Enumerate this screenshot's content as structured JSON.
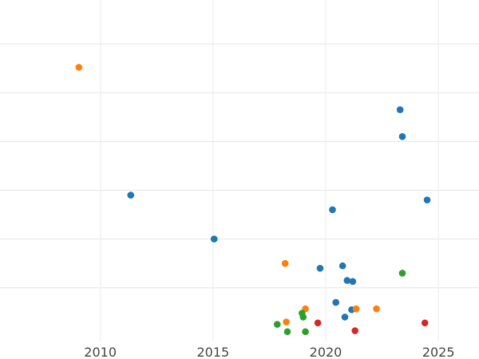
{
  "chart_data": {
    "type": "scatter",
    "title": "",
    "xlabel": "",
    "ylabel": "",
    "xlim": [
      2005.55,
      2026.8
    ],
    "ylim": [
      -0.1,
      6.9
    ],
    "x_ticks": [
      2010,
      2015,
      2020,
      2025
    ],
    "x_tick_labels": [
      "2010",
      "2015",
      "2020",
      "2025"
    ],
    "y_gridlines": [
      1,
      2,
      3,
      4,
      5,
      6
    ],
    "grid": true,
    "legend": "none",
    "series": [
      {
        "name": "blue",
        "color": "#1f77b4",
        "points": [
          [
            2011.35,
            2.9
          ],
          [
            2015.05,
            2.0
          ],
          [
            2019.75,
            1.4
          ],
          [
            2020.3,
            2.6
          ],
          [
            2020.75,
            1.45
          ],
          [
            2020.95,
            1.15
          ],
          [
            2021.2,
            1.13
          ],
          [
            2020.45,
            0.7
          ],
          [
            2021.15,
            0.55
          ],
          [
            2020.85,
            0.4
          ],
          [
            2023.3,
            4.65
          ],
          [
            2023.4,
            4.1
          ],
          [
            2024.5,
            2.8
          ]
        ]
      },
      {
        "name": "orange",
        "color": "#ff7f0e",
        "points": [
          [
            2009.05,
            5.52
          ],
          [
            2018.2,
            1.5
          ],
          [
            2019.1,
            0.57
          ],
          [
            2018.25,
            0.3
          ],
          [
            2021.35,
            0.57
          ],
          [
            2022.25,
            0.57
          ]
        ]
      },
      {
        "name": "green",
        "color": "#2ca02c",
        "points": [
          [
            2023.4,
            1.3
          ],
          [
            2018.95,
            0.48
          ],
          [
            2019.0,
            0.4
          ],
          [
            2017.85,
            0.25
          ],
          [
            2018.3,
            0.1
          ],
          [
            2019.1,
            0.1
          ]
        ]
      },
      {
        "name": "red",
        "color": "#d62728",
        "points": [
          [
            2019.65,
            0.28
          ],
          [
            2021.3,
            0.12
          ],
          [
            2024.4,
            0.28
          ]
        ]
      }
    ]
  }
}
